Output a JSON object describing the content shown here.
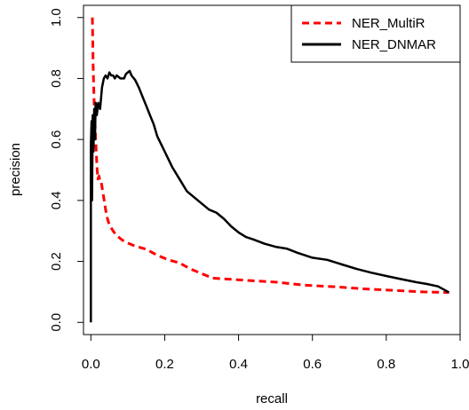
{
  "chart_data": {
    "type": "line",
    "xlabel": "recall",
    "ylabel": "precision",
    "xlim": [
      -0.02,
      1.0
    ],
    "ylim": [
      -0.04,
      1.04
    ],
    "xticks": [
      {
        "value": 0.0,
        "label": "0.0"
      },
      {
        "value": 0.2,
        "label": "0.2"
      },
      {
        "value": 0.4,
        "label": "0.4"
      },
      {
        "value": 0.6,
        "label": "0.6"
      },
      {
        "value": 0.8,
        "label": "0.8"
      },
      {
        "value": 1.0,
        "label": "1.0"
      }
    ],
    "yticks": [
      {
        "value": 0.0,
        "label": "0.0"
      },
      {
        "value": 0.2,
        "label": "0.2"
      },
      {
        "value": 0.4,
        "label": "0.4"
      },
      {
        "value": 0.6,
        "label": "0.6"
      },
      {
        "value": 0.8,
        "label": "0.8"
      },
      {
        "value": 1.0,
        "label": "1.0"
      }
    ],
    "grid": false,
    "legend_position": "top-right",
    "series": [
      {
        "name": "NER_MultiR",
        "color": "#ff0000",
        "dash": "dashed",
        "points": [
          [
            0.004,
            1.0
          ],
          [
            0.005,
            0.93
          ],
          [
            0.006,
            0.85
          ],
          [
            0.008,
            0.76
          ],
          [
            0.009,
            0.71
          ],
          [
            0.011,
            0.66
          ],
          [
            0.013,
            0.6
          ],
          [
            0.015,
            0.55
          ],
          [
            0.017,
            0.5
          ],
          [
            0.019,
            0.47
          ],
          [
            0.022,
            0.48
          ],
          [
            0.025,
            0.46
          ],
          [
            0.028,
            0.46
          ],
          [
            0.032,
            0.43
          ],
          [
            0.036,
            0.4
          ],
          [
            0.04,
            0.37
          ],
          [
            0.045,
            0.34
          ],
          [
            0.05,
            0.32
          ],
          [
            0.06,
            0.3
          ],
          [
            0.07,
            0.285
          ],
          [
            0.085,
            0.27
          ],
          [
            0.1,
            0.26
          ],
          [
            0.12,
            0.25
          ],
          [
            0.15,
            0.24
          ],
          [
            0.18,
            0.22
          ],
          [
            0.21,
            0.205
          ],
          [
            0.24,
            0.195
          ],
          [
            0.27,
            0.175
          ],
          [
            0.3,
            0.16
          ],
          [
            0.33,
            0.145
          ],
          [
            0.37,
            0.142
          ],
          [
            0.42,
            0.138
          ],
          [
            0.5,
            0.132
          ],
          [
            0.58,
            0.122
          ],
          [
            0.66,
            0.117
          ],
          [
            0.74,
            0.11
          ],
          [
            0.82,
            0.105
          ],
          [
            0.9,
            0.1
          ],
          [
            0.97,
            0.098
          ]
        ]
      },
      {
        "name": "NER_DNMAR",
        "color": "#000000",
        "dash": "solid",
        "points": [
          [
            0.0,
            0.0
          ],
          [
            0.0,
            0.58
          ],
          [
            0.002,
            0.66
          ],
          [
            0.003,
            0.4
          ],
          [
            0.005,
            0.68
          ],
          [
            0.007,
            0.56
          ],
          [
            0.009,
            0.7
          ],
          [
            0.011,
            0.6
          ],
          [
            0.013,
            0.72
          ],
          [
            0.016,
            0.68
          ],
          [
            0.02,
            0.72
          ],
          [
            0.025,
            0.7
          ],
          [
            0.03,
            0.77
          ],
          [
            0.035,
            0.8
          ],
          [
            0.04,
            0.81
          ],
          [
            0.045,
            0.8
          ],
          [
            0.05,
            0.82
          ],
          [
            0.055,
            0.81
          ],
          [
            0.06,
            0.81
          ],
          [
            0.065,
            0.8
          ],
          [
            0.07,
            0.81
          ],
          [
            0.08,
            0.8
          ],
          [
            0.09,
            0.8
          ],
          [
            0.095,
            0.815
          ],
          [
            0.1,
            0.82
          ],
          [
            0.105,
            0.825
          ],
          [
            0.11,
            0.81
          ],
          [
            0.12,
            0.795
          ],
          [
            0.13,
            0.77
          ],
          [
            0.14,
            0.74
          ],
          [
            0.15,
            0.71
          ],
          [
            0.16,
            0.68
          ],
          [
            0.17,
            0.65
          ],
          [
            0.18,
            0.61
          ],
          [
            0.19,
            0.585
          ],
          [
            0.2,
            0.56
          ],
          [
            0.22,
            0.51
          ],
          [
            0.24,
            0.47
          ],
          [
            0.26,
            0.43
          ],
          [
            0.28,
            0.41
          ],
          [
            0.3,
            0.39
          ],
          [
            0.32,
            0.37
          ],
          [
            0.34,
            0.36
          ],
          [
            0.36,
            0.34
          ],
          [
            0.38,
            0.315
          ],
          [
            0.4,
            0.295
          ],
          [
            0.42,
            0.28
          ],
          [
            0.44,
            0.272
          ],
          [
            0.47,
            0.258
          ],
          [
            0.5,
            0.248
          ],
          [
            0.53,
            0.242
          ],
          [
            0.56,
            0.228
          ],
          [
            0.6,
            0.212
          ],
          [
            0.64,
            0.205
          ],
          [
            0.68,
            0.19
          ],
          [
            0.72,
            0.175
          ],
          [
            0.76,
            0.163
          ],
          [
            0.8,
            0.152
          ],
          [
            0.84,
            0.142
          ],
          [
            0.88,
            0.132
          ],
          [
            0.91,
            0.126
          ],
          [
            0.94,
            0.118
          ],
          [
            0.96,
            0.105
          ],
          [
            0.97,
            0.098
          ]
        ]
      }
    ]
  }
}
